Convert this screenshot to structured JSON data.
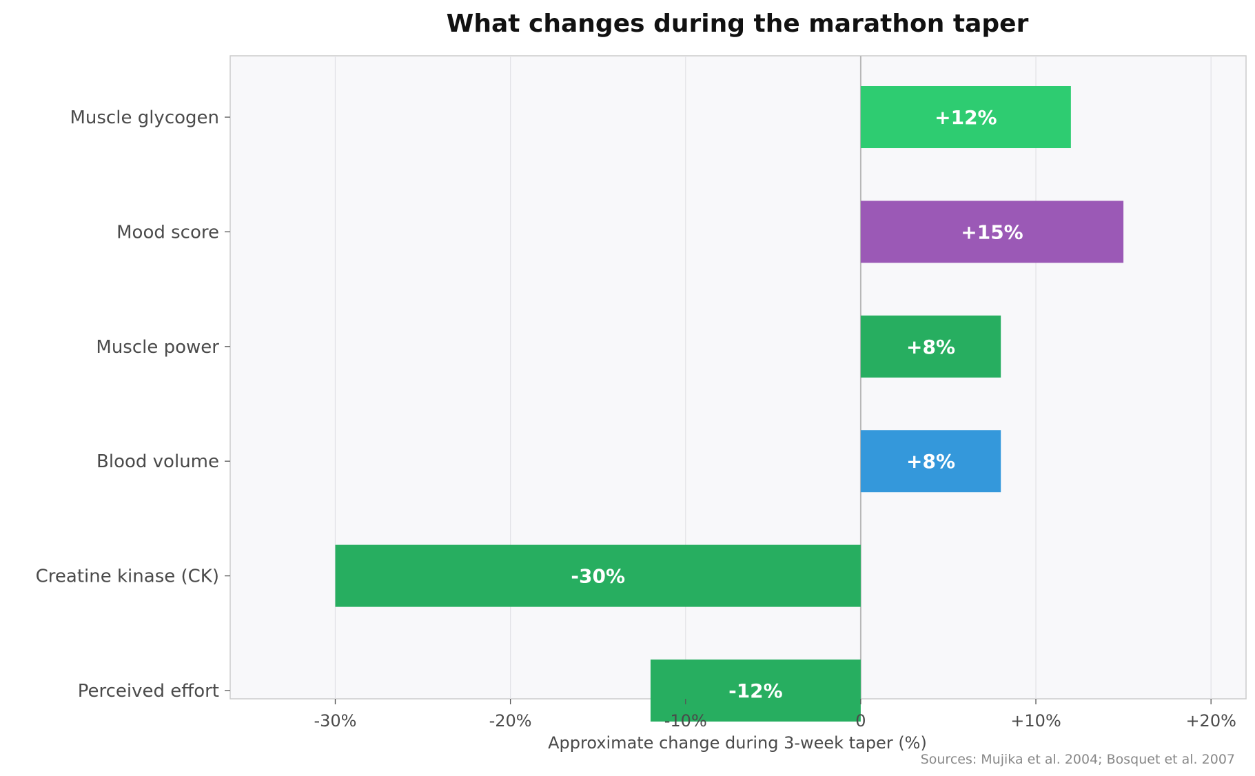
{
  "chart_data": {
    "type": "bar",
    "orientation": "horizontal",
    "title": "What changes during the marathon taper",
    "xlabel": "Approximate change during 3-week taper (%)",
    "ylabel": "",
    "xlim": [
      -36,
      22
    ],
    "x_ticks": [
      -30,
      -20,
      -10,
      0,
      10,
      20
    ],
    "x_tick_labels": [
      "-30%",
      "-20%",
      "-10%",
      "0",
      "+10%",
      "+20%"
    ],
    "categories": [
      "Muscle glycogen",
      "Mood score",
      "Muscle power",
      "Blood volume",
      "Creatine kinase (CK)",
      "Perceived effort"
    ],
    "values": [
      12,
      15,
      8,
      8,
      -30,
      -12
    ],
    "data_labels": [
      "+12%",
      "+15%",
      "+8%",
      "+8%",
      "-30%",
      "-12%"
    ],
    "bar_colors": [
      "#2ecc71",
      "#9b59b6",
      "#27ae60",
      "#3498db",
      "#27ae60",
      "#27ae60"
    ],
    "grid": true,
    "background_color": "#f8f8fa",
    "source_note": "Sources: Mujika et al. 2004; Bosquet et al. 2007"
  }
}
